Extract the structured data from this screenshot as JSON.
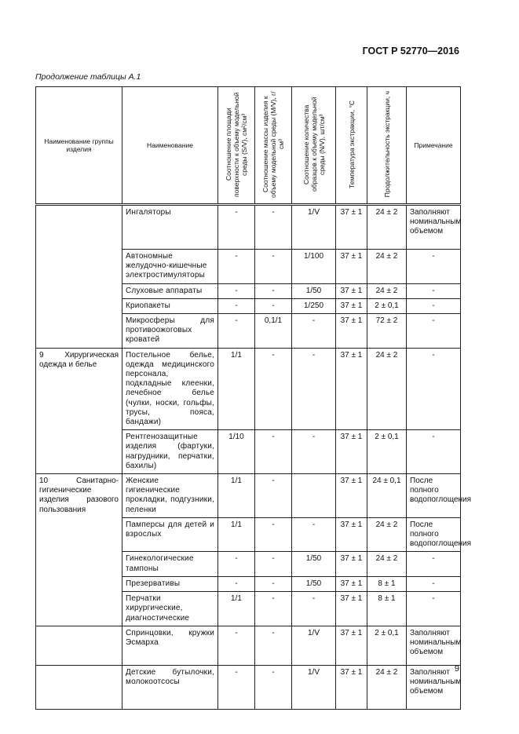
{
  "header": {
    "doc_code": "ГОСТ Р 52770—2016"
  },
  "caption": "Продолжение таблицы А.1",
  "table": {
    "columns": [
      "Наименование группы изделия",
      "Наименование",
      "Соотношение площади поверхности к объему модельной среды (S/V), см²/см³",
      "Соотношение массы изделия к объему модельной среды (M/V), г/см³",
      "Соотношение количества образцов к объему модельной среды (N/V), шт/см³",
      "Температура экстракции, °С",
      "Продолжительность экстракции, ч",
      "Примечание"
    ],
    "groups": [
      {
        "label": "",
        "rows": [
          {
            "name": "Ингаляторы",
            "sv": "-",
            "mv": "-",
            "nv": "1/V",
            "temp": "37 ± 1",
            "dur": "24 ± 2",
            "note": "Заполняют номинальным объемом"
          },
          {
            "name": "Автономные желудочно-кишечные электростимуляторы",
            "sv": "-",
            "mv": "-",
            "nv": "1/100",
            "temp": "37 ± 1",
            "dur": "24 ± 2",
            "note": "-"
          },
          {
            "name": "Слуховые аппараты",
            "sv": "-",
            "mv": "-",
            "nv": "1/50",
            "temp": "37 ± 1",
            "dur": "24 ± 2",
            "note": "-"
          },
          {
            "name": "Криопакеты",
            "sv": "-",
            "mv": "-",
            "nv": "1/250",
            "temp": "37 ± 1",
            "dur": "2 ± 0,1",
            "note": "-"
          },
          {
            "name": "Микросферы для противоожоговых кроватей",
            "sv": "-",
            "mv": "0,1/1",
            "nv": "-",
            "temp": "37 ± 1",
            "dur": "72 ± 2",
            "note": "-"
          }
        ]
      },
      {
        "label": "9 Хирургическая одежда и белье",
        "rows": [
          {
            "name": "Постельное белье, одежда медицинского персонала, подкладные клеенки, лечебное белье (чулки, носки, гольфы, трусы, пояса, бандажи)",
            "sv": "1/1",
            "mv": "-",
            "nv": "-",
            "temp": "37 ± 1",
            "dur": "24 ± 2",
            "note": "-"
          },
          {
            "name": "Рентгенозащитные изделия (фартуки, нагрудники, перчатки, бахилы)",
            "sv": "1/10",
            "mv": "-",
            "nv": "-",
            "temp": "37 ± 1",
            "dur": "2 ± 0,1",
            "note": "-"
          }
        ]
      },
      {
        "label": "10 Санитарно-гигиенические изделия разового пользования",
        "rows": [
          {
            "name": "Женские гигиенические прокладки, подгузники, пеленки",
            "sv": "1/1",
            "mv": "-",
            "nv": "",
            "temp": "37 ± 1",
            "dur": "24 ± 0,1",
            "note": "После полного водопоглощения"
          },
          {
            "name": "Памперсы для детей и взрослых",
            "sv": "1/1",
            "mv": "-",
            "nv": "-",
            "temp": "37 ± 1",
            "dur": "24 ± 2",
            "note": "После полного водопоглощения"
          },
          {
            "name": "Гинекологические тампоны",
            "sv": "-",
            "mv": "-",
            "nv": "1/50",
            "temp": "37 ± 1",
            "dur": "24 ± 2",
            "note": "-"
          },
          {
            "name": "Презервативы",
            "sv": "-",
            "mv": "-",
            "nv": "1/50",
            "temp": "37 ± 1",
            "dur": "8 ± 1",
            "note": "-"
          },
          {
            "name": "Перчатки хирургические, диагностические",
            "sv": "1/1",
            "mv": "-",
            "nv": "-",
            "temp": "37 ± 1",
            "dur": "8 ± 1",
            "note": "-"
          }
        ]
      },
      {
        "label": "",
        "rows": [
          {
            "name": "Спринцовки, кружки Эсмарха",
            "sv": "-",
            "mv": "-",
            "nv": "1/V",
            "temp": "37 ± 1",
            "dur": "2 ± 0,1",
            "note": "Заполняют номинальным объемом"
          }
        ]
      },
      {
        "label": "",
        "rows": [
          {
            "name": "Детские бутылочки, молокоотсосы",
            "sv": "-",
            "mv": "-",
            "nv": "1/V",
            "temp": "37 ± 1",
            "dur": "24 ± 2",
            "note": "Заполняют номинальным объемом"
          }
        ]
      }
    ]
  },
  "footer": {
    "page_number": "9"
  }
}
